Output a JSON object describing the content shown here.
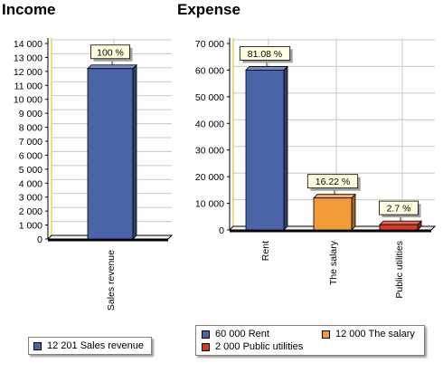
{
  "chart_data": [
    {
      "type": "bar",
      "title": "Income",
      "categories": [
        "Sales revenue"
      ],
      "values": [
        12201
      ],
      "data_labels": [
        "100 %"
      ],
      "ylim": [
        0,
        14000
      ],
      "ytick_labels": [
        "0",
        "1 000",
        "2 000",
        "3 000",
        "4 000",
        "5 000",
        "6 000",
        "7 000",
        "8 000",
        "9 000",
        "10 000",
        "11 000",
        "12 000",
        "13 000",
        "14 000"
      ],
      "grid": true,
      "colors": [
        "#4a64a8"
      ],
      "legend": {
        "placement": "bottom",
        "items": [
          {
            "label": "12 201 Sales revenue",
            "color": "#4a64a8"
          }
        ]
      }
    },
    {
      "type": "bar",
      "title": "Expense",
      "categories": [
        "Rent",
        "The salary",
        "Public utilities"
      ],
      "values": [
        60000,
        12000,
        2000
      ],
      "data_labels": [
        "81.08 %",
        "16.22 %",
        "2.7 %"
      ],
      "ylim": [
        0,
        70000
      ],
      "ytick_labels": [
        "0",
        "10 000",
        "20 000",
        "30 000",
        "40 000",
        "50 000",
        "60 000",
        "70 000"
      ],
      "grid": true,
      "colors": [
        "#4a64a8",
        "#f09a38",
        "#d63a1e"
      ],
      "legend": {
        "placement": "bottom",
        "items": [
          {
            "label": "60 000 Rent",
            "color": "#4a64a8"
          },
          {
            "label": "12 000 The salary",
            "color": "#f09a38"
          },
          {
            "label": "2 000 Public utilities",
            "color": "#d63a1e"
          }
        ]
      }
    }
  ]
}
